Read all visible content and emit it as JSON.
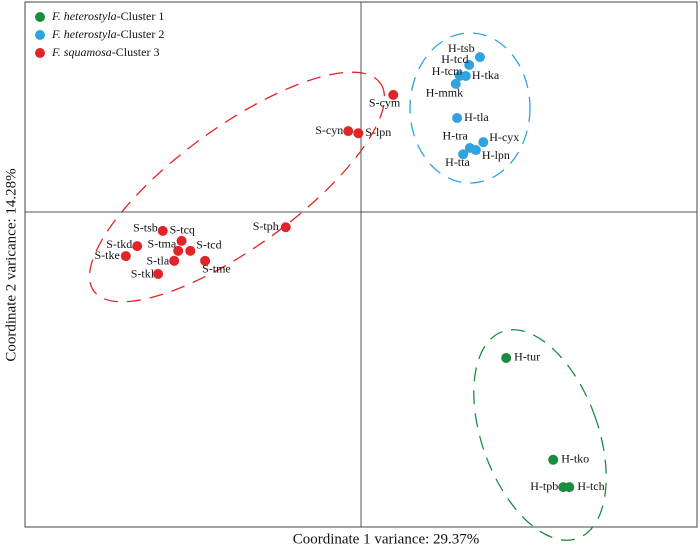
{
  "chart_data": {
    "type": "scatter",
    "xlabel": "Coordinate 1 variance: 29.37%",
    "ylabel": "Coordinate 2 varicance: 14.28%",
    "xlim": [
      -0.5,
      0.5
    ],
    "ylim": [
      -0.6,
      0.4
    ],
    "legend": "upper left",
    "series": [
      {
        "name": "F. heterostyla-Cluster 1",
        "color": "#1a8c3e",
        "labels": [
          "H-tur",
          "H-tko",
          "H-tpb",
          "H-tch"
        ],
        "x": [
          0.216,
          0.286,
          0.301,
          0.31
        ],
        "values": [
          -0.278,
          -0.472,
          -0.524,
          -0.524
        ]
      },
      {
        "name": "F. heterostyla-Cluster 2",
        "color": "#2ea3e0",
        "labels": [
          "H-tsb",
          "H-tcd",
          "H-tcm",
          "H-tka",
          "H-mmk",
          "H-tla",
          "H-cyx",
          "H-tra",
          "H-lpn",
          "H-tta"
        ],
        "x": [
          0.177,
          0.161,
          0.147,
          0.156,
          0.141,
          0.143,
          0.182,
          0.162,
          0.171,
          0.152
        ],
        "values": [
          0.295,
          0.28,
          0.259,
          0.259,
          0.244,
          0.179,
          0.133,
          0.122,
          0.118,
          0.11
        ]
      },
      {
        "name": "F. squamosa-Cluster 3",
        "color": "#e02428",
        "labels": [
          "S-cym",
          "S-cyn",
          "S-lpn",
          "S-tph",
          "S-tsb",
          "S-tcq",
          "S-tkd",
          "S-tma",
          "S-tcd",
          "S-tke",
          "S-tla",
          "S-tme",
          "S-tkl"
        ],
        "x": [
          0.048,
          -0.019,
          -0.004,
          -0.112,
          -0.295,
          -0.267,
          -0.333,
          -0.272,
          -0.254,
          -0.35,
          -0.278,
          -0.232,
          -0.302
        ],
        "values": [
          0.223,
          0.154,
          0.15,
          -0.029,
          -0.036,
          -0.055,
          -0.065,
          -0.074,
          -0.074,
          -0.084,
          -0.093,
          -0.093,
          -0.118
        ]
      }
    ]
  }
}
